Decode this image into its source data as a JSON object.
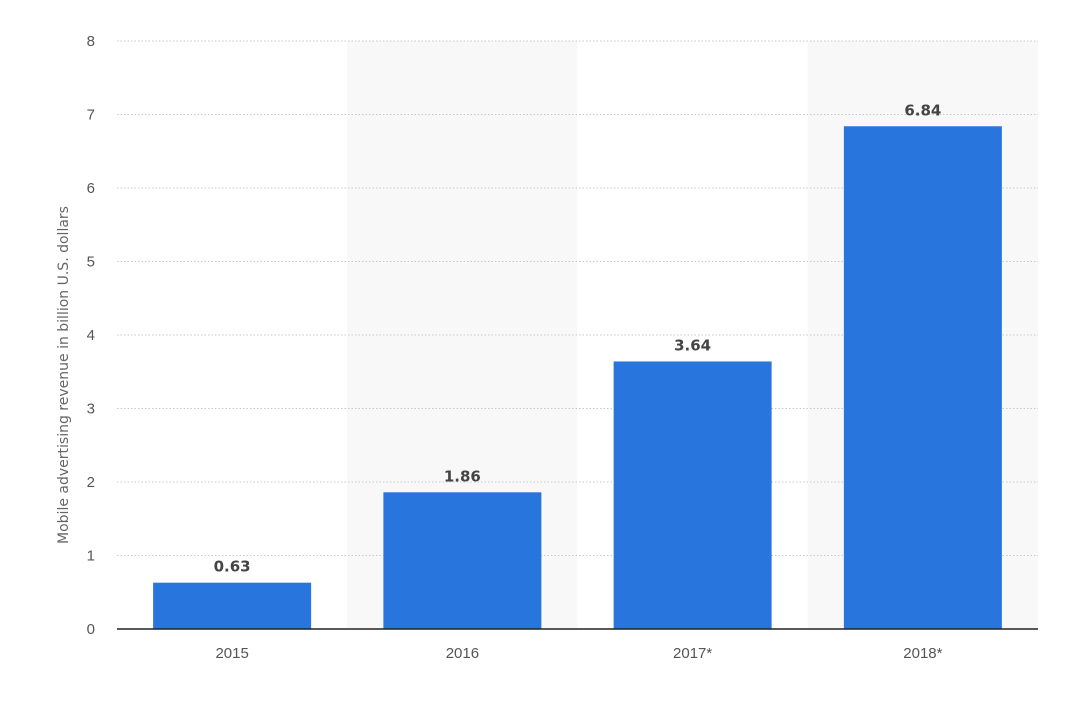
{
  "chart_data": {
    "type": "bar",
    "categories": [
      "2015",
      "2016",
      "2017*",
      "2018*"
    ],
    "values": [
      0.63,
      1.86,
      3.64,
      6.84
    ],
    "value_labels": [
      "0.63",
      "1.86",
      "3.64",
      "6.84"
    ],
    "title": "",
    "xlabel": "",
    "ylabel": "Mobile advertising revenue in billion U.S. dollars",
    "ylim": [
      0,
      8
    ],
    "yticks": [
      0,
      1,
      2,
      3,
      4,
      5,
      6,
      7,
      8
    ],
    "grid": true,
    "legend": "none",
    "bar_color": "#2876dd",
    "band_color": "#f8f8f8",
    "gridline_color": "#c8c8c8",
    "axis_color": "#222222"
  }
}
